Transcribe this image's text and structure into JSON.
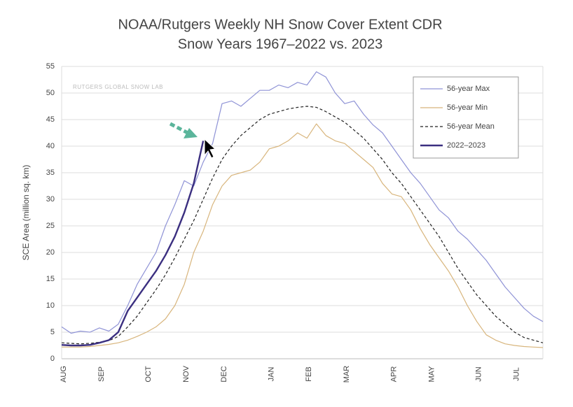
{
  "chart_data": {
    "type": "line",
    "title": "NOAA/Rutgers Weekly NH Snow Cover Extent CDR",
    "subtitle": "Snow Years 1967–2022 vs. 2023",
    "y_label": "SCE Area (million sq. km)",
    "annotation": "RUTGERS GLOBAL SNOW LAB",
    "categories": [
      "AUG",
      null,
      null,
      null,
      "SEP",
      null,
      null,
      null,
      null,
      "OCT",
      null,
      null,
      null,
      "NOV",
      null,
      null,
      null,
      "DEC",
      null,
      null,
      null,
      null,
      "JAN",
      null,
      null,
      null,
      "FEB",
      null,
      null,
      null,
      "MAR",
      null,
      null,
      null,
      null,
      "APR",
      null,
      null,
      null,
      "MAY",
      null,
      null,
      null,
      null,
      "JUN",
      null,
      null,
      null,
      "JUL",
      null,
      null,
      null
    ],
    "ylim": [
      0,
      55
    ],
    "yticks": [
      0,
      5,
      10,
      15,
      20,
      25,
      30,
      35,
      40,
      45,
      50,
      55
    ],
    "grid": true,
    "legend": "top-right",
    "series": [
      {
        "name": "56-year Max",
        "color": "#8f93d6",
        "style": "solid",
        "width": 1.2,
        "values": [
          6,
          4.8,
          5.2,
          5,
          5.8,
          5.2,
          6.5,
          10,
          14,
          17,
          20,
          25,
          29,
          33.5,
          32.5,
          37,
          40.5,
          48,
          48.5,
          47.5,
          49,
          50.5,
          50.5,
          51.5,
          51,
          52,
          51.5,
          54,
          53,
          50,
          48,
          48.5,
          46,
          44,
          42.5,
          40,
          37.5,
          35,
          33,
          30.5,
          28,
          26.5,
          24,
          22.5,
          20.5,
          18.5,
          16,
          13.5,
          11.5,
          9.5,
          8,
          7
        ]
      },
      {
        "name": "56-year Min",
        "color": "#d8b57c",
        "style": "solid",
        "width": 1.2,
        "values": [
          2.2,
          2.2,
          2.2,
          2.3,
          2.5,
          2.7,
          3,
          3.5,
          4.2,
          5,
          6,
          7.5,
          10,
          14,
          20,
          24,
          29,
          32.5,
          34.5,
          35,
          35.5,
          37,
          39.5,
          40,
          41,
          42.5,
          41.5,
          44.2,
          42,
          41,
          40.5,
          39,
          37.5,
          36,
          33,
          31,
          30.5,
          28,
          24.5,
          21.5,
          19,
          16.5,
          13.5,
          10,
          7,
          4.5,
          3.5,
          2.8,
          2.5,
          2.3,
          2.2,
          2.1
        ]
      },
      {
        "name": "56-year Mean",
        "color": "#222222",
        "style": "dashed",
        "width": 1.2,
        "values": [
          3,
          2.9,
          2.8,
          2.9,
          3.1,
          3.4,
          4.2,
          6,
          8,
          10.5,
          13,
          15.8,
          19,
          22.5,
          26,
          30,
          34,
          37.5,
          40,
          42,
          43.5,
          45,
          46,
          46.5,
          47,
          47.3,
          47.5,
          47.3,
          46.5,
          45.5,
          44.5,
          43,
          41.5,
          39.5,
          37.5,
          35,
          33,
          30.5,
          28,
          25.5,
          23,
          20,
          17,
          14.5,
          12,
          10,
          8,
          6.5,
          5,
          4,
          3.5,
          3
        ]
      },
      {
        "name": "2022–2023",
        "color": "#3b2f80",
        "style": "solid",
        "width": 2.4,
        "values": [
          2.6,
          2.5,
          2.5,
          2.6,
          3,
          3.5,
          5,
          9,
          11.5,
          14,
          16.5,
          19.5,
          23,
          27.5,
          33,
          41,
          null,
          null,
          null,
          null,
          null,
          null,
          null,
          null,
          null,
          null,
          null,
          null,
          null,
          null,
          null,
          null,
          null,
          null,
          null,
          null,
          null,
          null,
          null,
          null,
          null,
          null,
          null,
          null,
          null,
          null,
          null,
          null,
          null,
          null,
          null,
          null
        ]
      }
    ]
  }
}
